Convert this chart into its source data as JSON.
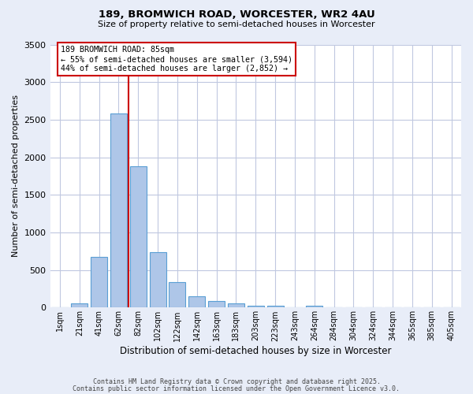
{
  "title_line1": "189, BROMWICH ROAD, WORCESTER, WR2 4AU",
  "title_line2": "Size of property relative to semi-detached houses in Worcester",
  "xlabel": "Distribution of semi-detached houses by size in Worcester",
  "ylabel": "Number of semi-detached properties",
  "categories": [
    "1sqm",
    "21sqm",
    "41sqm",
    "62sqm",
    "82sqm",
    "102sqm",
    "122sqm",
    "142sqm",
    "163sqm",
    "183sqm",
    "203sqm",
    "223sqm",
    "243sqm",
    "264sqm",
    "284sqm",
    "304sqm",
    "324sqm",
    "344sqm",
    "365sqm",
    "385sqm",
    "405sqm"
  ],
  "values": [
    0,
    60,
    680,
    2580,
    1880,
    740,
    340,
    155,
    90,
    55,
    30,
    20,
    0,
    30,
    0,
    0,
    0,
    0,
    0,
    0,
    0
  ],
  "bar_color": "#aec6e8",
  "bar_edge_color": "#5a9fd4",
  "annotation_text": "189 BROMWICH ROAD: 85sqm\n← 55% of semi-detached houses are smaller (3,594)\n44% of semi-detached houses are larger (2,852) →",
  "annotation_box_edge_color": "#cc0000",
  "vline_color": "#cc0000",
  "ylim": [
    0,
    3500
  ],
  "yticks": [
    0,
    500,
    1000,
    1500,
    2000,
    2500,
    3000,
    3500
  ],
  "footer_line1": "Contains HM Land Registry data © Crown copyright and database right 2025.",
  "footer_line2": "Contains public sector information licensed under the Open Government Licence v3.0.",
  "bg_color": "#e8edf8",
  "plot_bg_color": "#ffffff",
  "grid_color": "#c0c8e0"
}
